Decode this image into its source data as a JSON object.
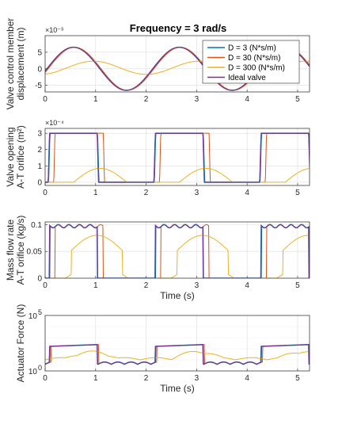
{
  "chart_data": [
    {
      "type": "line",
      "title": "Frequency = 3 rad/s",
      "ylabel": [
        "Valve control member",
        "displacement (m)"
      ],
      "xlabel": "",
      "exponent": "×10⁻³",
      "xlim": [
        0,
        5.236
      ],
      "ylim": [
        -7,
        10
      ],
      "xticks": [
        "0",
        "1",
        "2",
        "3",
        "4",
        "5"
      ],
      "yticks": [
        -5,
        0,
        5
      ],
      "ytick_labels": [
        "-5",
        "0",
        "5"
      ],
      "grid": true,
      "legend_position": "top-right",
      "legend": [
        {
          "name": "D = 3 (N*s/m)",
          "color": "#0072BD"
        },
        {
          "name": "D = 30 (N*s/m)",
          "color": "#D95319"
        },
        {
          "name": "D = 300 (N*s/m)",
          "color": "#EDB120"
        },
        {
          "name": "Ideal valve",
          "color": "#7E2F8E"
        }
      ]
    },
    {
      "type": "line",
      "ylabel": [
        "Valve opening",
        "A-T orifice (m²)"
      ],
      "xlabel": "",
      "exponent": "×10⁻⁴",
      "xlim": [
        0,
        5.236
      ],
      "ylim": [
        -0.2,
        3.3
      ],
      "xticks": [
        "0",
        "1",
        "2",
        "3",
        "4",
        "5"
      ],
      "yticks": [
        0,
        1,
        2,
        3
      ],
      "ytick_labels": [
        "0",
        "1",
        "2",
        "3"
      ],
      "grid": true
    },
    {
      "type": "line",
      "ylabel": [
        "Mass flow rate",
        "A-T orifice (kg/s)"
      ],
      "xlabel": "Time (s)",
      "xlim": [
        0,
        5.236
      ],
      "ylim": [
        0,
        0.105
      ],
      "xticks": [
        "0",
        "1",
        "2",
        "3",
        "4",
        "5"
      ],
      "yticks": [
        0,
        0.05,
        0.1
      ],
      "ytick_labels": [
        "0",
        "0.05",
        "0.1"
      ],
      "grid": true
    },
    {
      "type": "line",
      "ylabel": [
        "Actuator Force (N)"
      ],
      "xlabel": "Time (s)",
      "xlim": [
        0,
        5.236
      ],
      "ylim_log": [
        0,
        5
      ],
      "yscale": "log",
      "xticks": [
        "0",
        "1",
        "2",
        "3",
        "4",
        "5"
      ],
      "ytick_labels_log": [
        {
          "base": "10",
          "exp": "0",
          "at": 0
        },
        {
          "base": "10",
          "exp": "5",
          "at": 5
        }
      ],
      "grid": true
    }
  ]
}
